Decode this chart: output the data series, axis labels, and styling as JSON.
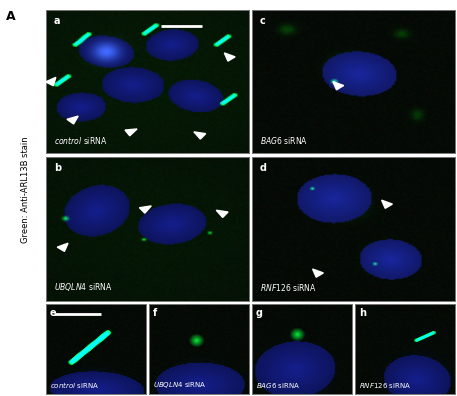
{
  "figure_label": "A",
  "ylabel": "Green: Anti-ARL13B stain",
  "bg_color": [
    0.02,
    0.04,
    0.02
  ],
  "nucleus_color": [
    0.08,
    0.12,
    0.55
  ],
  "cilium_color": [
    0.0,
    0.9,
    0.2
  ],
  "dot_color": [
    0.0,
    0.85,
    0.15
  ],
  "panels_top": [
    {
      "label": "a",
      "condition": "control siRNA"
    },
    {
      "label": "c",
      "condition": "BAG6 siRNA"
    },
    {
      "label": "b",
      "condition": "UBQLN4 siRNA"
    },
    {
      "label": "d",
      "condition": "RNF126 siRNA"
    }
  ],
  "panels_bottom": [
    {
      "label": "e",
      "condition": "control siRNA"
    },
    {
      "label": "f",
      "condition": "UBQLN4 siRNA"
    },
    {
      "label": "g",
      "condition": "BAG6 siRNA"
    },
    {
      "label": "h",
      "condition": "RNF126 siRNA"
    }
  ]
}
